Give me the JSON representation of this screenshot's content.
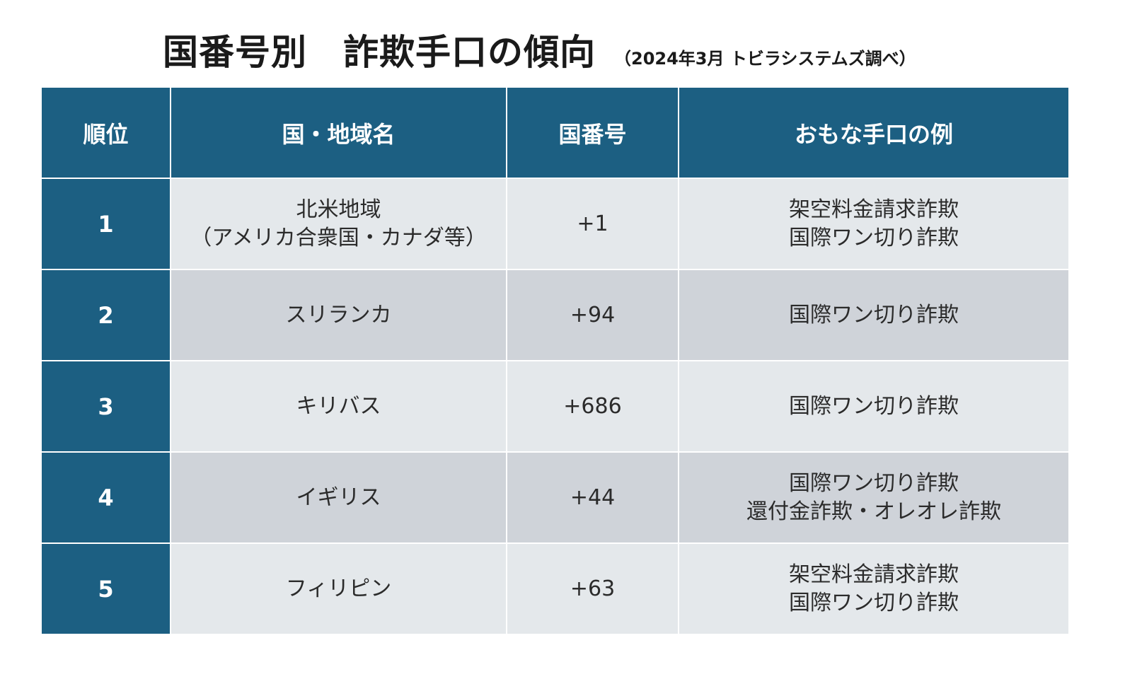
{
  "title": {
    "main": "国番号別　詐欺手口の傾向",
    "sub": "（2024年3月 トビラシステムズ調べ）"
  },
  "table": {
    "headers": [
      "順位",
      "国・地域名",
      "国番号",
      "おもな手口の例"
    ],
    "rows": [
      {
        "rank": "1",
        "region": [
          "北米地域",
          "（アメリカ合衆国・カナダ等）"
        ],
        "code": "+1",
        "methods": [
          "架空料金請求詐欺",
          "国際ワン切り詐欺"
        ]
      },
      {
        "rank": "2",
        "region": [
          "スリランカ",
          ""
        ],
        "code": "+94",
        "methods": [
          "国際ワン切り詐欺",
          ""
        ]
      },
      {
        "rank": "3",
        "region": [
          "キリバス",
          ""
        ],
        "code": "+686",
        "methods": [
          "国際ワン切り詐欺",
          ""
        ]
      },
      {
        "rank": "4",
        "region": [
          "イギリス",
          ""
        ],
        "code": "+44",
        "methods": [
          "国際ワン切り詐欺",
          "還付金詐欺・オレオレ詐欺"
        ]
      },
      {
        "rank": "5",
        "region": [
          "フィリピン",
          ""
        ],
        "code": "+63",
        "methods": [
          "架空料金請求詐欺",
          "国際ワン切り詐欺"
        ]
      }
    ]
  },
  "colors": {
    "header_bg": "#1c5f82",
    "row_light": "#e4e8eb",
    "row_dark": "#cfd3d9"
  }
}
